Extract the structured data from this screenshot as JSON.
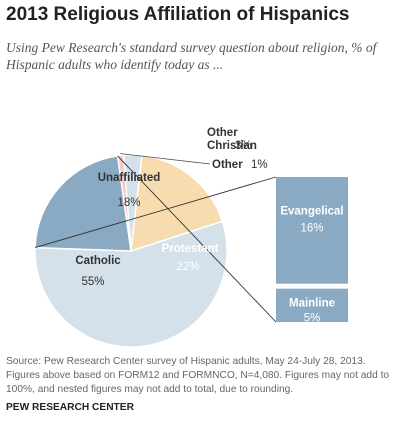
{
  "title": "2013 Religious Affiliation of Hispanics",
  "subtitle": "Using Pew Research's standard survey question about religion, % of Hispanic adults who identify today as ...",
  "source": "Source: Pew Research Center survey of Hispanic adults, May 24-July 28, 2013. Figures above based on FORM12 and FORMNCO, N=4,080. Figures may not add to 100%, and nested figures may not add to total, due to rounding.",
  "brand": "PEW RESEARCH CENTER",
  "colors": {
    "catholic": "#d4e0ea",
    "protestant": "#8aaac3",
    "unaffiliated": "#f7dcb0",
    "other_christian": "#d4e0ea",
    "other": "#f2c8c8",
    "breakout": "#8aaac3"
  },
  "chart_data": {
    "type": "pie",
    "slices": [
      {
        "key": "catholic",
        "label": "Catholic",
        "value": 55,
        "value_label": "55%"
      },
      {
        "key": "protestant",
        "label": "Protestant",
        "value": 22,
        "value_label": "22%"
      },
      {
        "key": "other",
        "label": "Other",
        "value": 1,
        "value_label": "1%"
      },
      {
        "key": "other_christian",
        "label_lines": [
          "Other",
          "Christian"
        ],
        "value": 3,
        "value_label": "3%"
      },
      {
        "key": "unaffiliated",
        "label": "Unaffiliated",
        "value": 18,
        "value_label": "18%"
      }
    ],
    "breakout": {
      "parent": "protestant",
      "segments": [
        {
          "label": "Evangelical",
          "value": 16,
          "value_label": "16%"
        },
        {
          "label": "Mainline",
          "value": 5,
          "value_label": "5%"
        }
      ]
    }
  }
}
